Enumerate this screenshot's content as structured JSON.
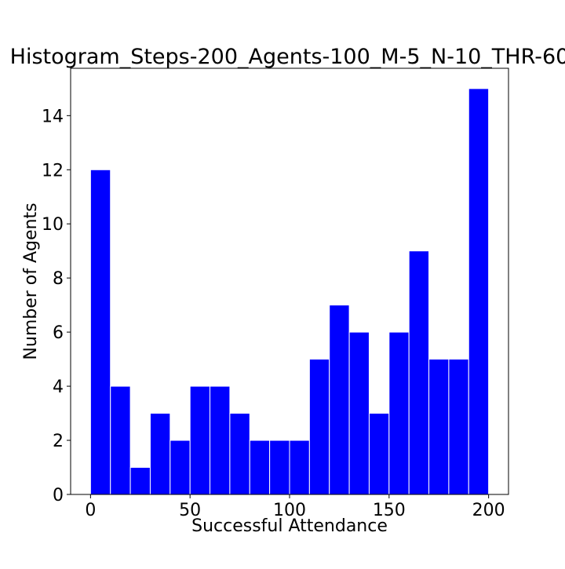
{
  "chart_data": {
    "type": "bar",
    "title": "Histogram_Steps-200_Agents-100_M-5_N-10_THR-60",
    "xlabel": "Successful Attendance",
    "ylabel": "Number of Agents",
    "xlim": [
      -10,
      210
    ],
    "ylim": [
      0,
      15.75
    ],
    "x_ticks": [
      0,
      50,
      100,
      150,
      200
    ],
    "y_ticks": [
      0,
      2,
      4,
      6,
      8,
      10,
      12,
      14
    ],
    "bin_edges": [
      0,
      10,
      20,
      30,
      40,
      50,
      60,
      70,
      80,
      90,
      100,
      110,
      120,
      130,
      140,
      150,
      160,
      170,
      180,
      190,
      200
    ],
    "values": [
      12,
      4,
      1,
      3,
      2,
      4,
      4,
      3,
      2,
      2,
      2,
      5,
      7,
      6,
      3,
      6,
      9,
      5,
      5,
      15
    ],
    "bar_color": "#0000ff",
    "bar_edge_color": "#ffffff",
    "grid": false,
    "legend": false
  }
}
